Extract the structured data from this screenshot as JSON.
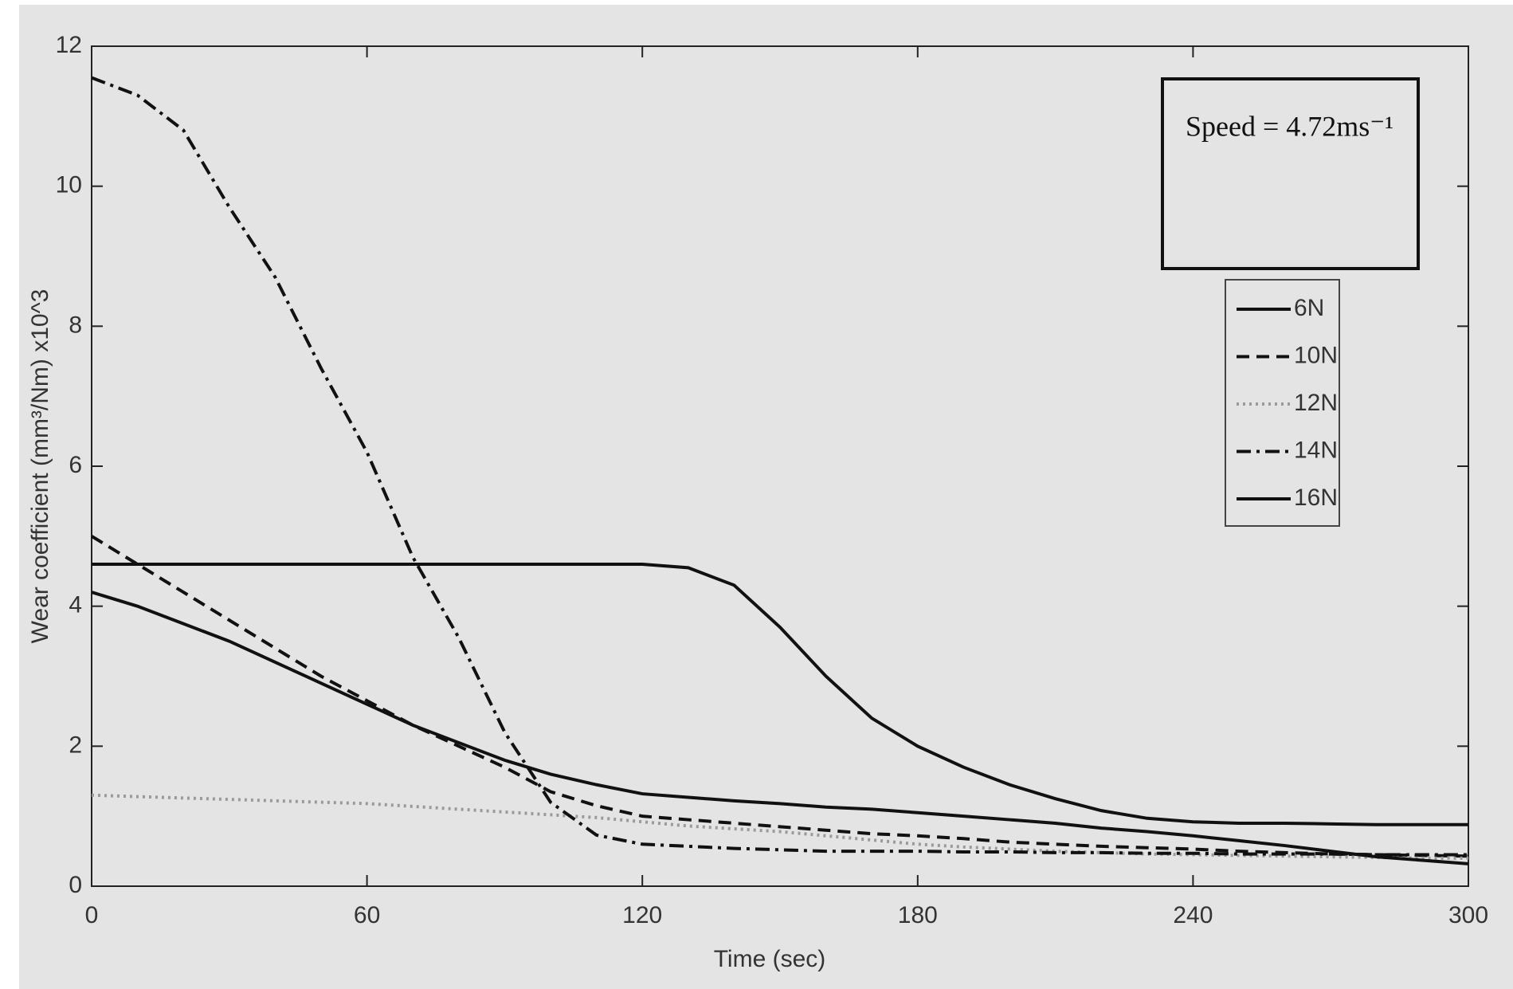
{
  "chart_data": {
    "type": "line",
    "annotation": "Speed = 4.72ms⁻¹",
    "x_label": "Time (sec)",
    "y_label": "Wear coefficient (mm³/Nm) x10^3",
    "x": [
      0,
      10,
      20,
      30,
      40,
      50,
      60,
      70,
      80,
      90,
      100,
      110,
      120,
      130,
      140,
      150,
      160,
      170,
      180,
      190,
      200,
      210,
      220,
      230,
      240,
      250,
      260,
      270,
      280,
      290,
      300
    ],
    "series": [
      {
        "name": "6N",
        "color": "#111111",
        "dash": "solid",
        "values": [
          4.6,
          4.6,
          4.6,
          4.6,
          4.6,
          4.6,
          4.6,
          4.6,
          4.6,
          4.6,
          4.6,
          4.6,
          4.6,
          4.55,
          4.3,
          3.7,
          3.0,
          2.4,
          2.0,
          1.7,
          1.45,
          1.25,
          1.08,
          0.97,
          0.92,
          0.9,
          0.9,
          0.89,
          0.88,
          0.88,
          0.88
        ]
      },
      {
        "name": "10N",
        "color": "#111111",
        "dash": "dashed",
        "values": [
          5.0,
          4.6,
          4.2,
          3.8,
          3.4,
          3.0,
          2.65,
          2.3,
          2.0,
          1.7,
          1.35,
          1.15,
          1.0,
          0.95,
          0.9,
          0.85,
          0.8,
          0.75,
          0.72,
          0.68,
          0.63,
          0.6,
          0.57,
          0.55,
          0.53,
          0.5,
          0.48,
          0.46,
          0.45,
          0.44,
          0.43
        ]
      },
      {
        "name": "12N",
        "color": "#9a9a9a",
        "dash": "dotted",
        "values": [
          1.3,
          1.28,
          1.26,
          1.24,
          1.22,
          1.2,
          1.18,
          1.14,
          1.1,
          1.06,
          1.02,
          0.98,
          0.92,
          0.86,
          0.82,
          0.78,
          0.72,
          0.66,
          0.6,
          0.56,
          0.53,
          0.5,
          0.48,
          0.46,
          0.45,
          0.44,
          0.43,
          0.42,
          0.41,
          0.4,
          0.4
        ]
      },
      {
        "name": "14N",
        "color": "#111111",
        "dash": "dashdot",
        "values": [
          11.55,
          11.3,
          10.8,
          9.7,
          8.7,
          7.4,
          6.2,
          4.7,
          3.55,
          2.2,
          1.2,
          0.73,
          0.6,
          0.57,
          0.54,
          0.52,
          0.5,
          0.5,
          0.5,
          0.49,
          0.49,
          0.48,
          0.48,
          0.47,
          0.47,
          0.46,
          0.46,
          0.46,
          0.45,
          0.45,
          0.45
        ]
      },
      {
        "name": "16N",
        "color": "#111111",
        "dash": "solid",
        "values": [
          4.2,
          4.0,
          3.75,
          3.5,
          3.2,
          2.9,
          2.6,
          2.3,
          2.05,
          1.8,
          1.6,
          1.45,
          1.32,
          1.27,
          1.22,
          1.18,
          1.13,
          1.1,
          1.05,
          1.0,
          0.95,
          0.9,
          0.83,
          0.78,
          0.72,
          0.65,
          0.58,
          0.5,
          0.42,
          0.37,
          0.32
        ]
      }
    ],
    "xlim": [
      0,
      300
    ],
    "xticks": [
      0,
      60,
      120,
      180,
      240,
      300
    ],
    "ylim": [
      0,
      12
    ],
    "yticks": [
      0,
      2,
      4,
      6,
      8,
      10,
      12
    ]
  }
}
